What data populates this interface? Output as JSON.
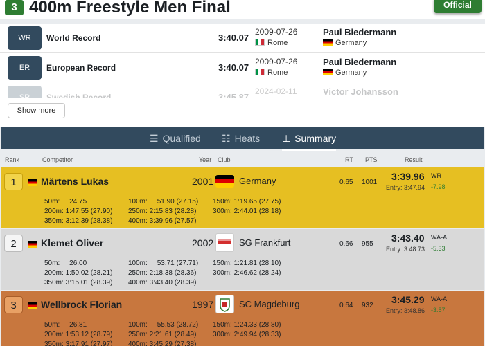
{
  "header": {
    "event_number": "3",
    "title": "400m Freestyle Men Final",
    "status_button": "Official"
  },
  "records": [
    {
      "badge": "WR",
      "name": "World Record",
      "time": "3:40.07",
      "date": "2009-07-26",
      "city": "Rome",
      "holder": "Paul Biedermann",
      "nation": "Germany"
    },
    {
      "badge": "ER",
      "name": "European Record",
      "time": "3:40.07",
      "date": "2009-07-26",
      "city": "Rome",
      "holder": "Paul Biedermann",
      "nation": "Germany"
    },
    {
      "badge": "SR",
      "name": "Swedish Record",
      "time": "3:45.87",
      "date": "2024-02-11",
      "holder": "Victor Johansson"
    }
  ],
  "show_more_label": "Show more",
  "tabs": [
    {
      "label": "Qualified",
      "icon": "list-icon"
    },
    {
      "label": "Heats",
      "icon": "heats-list-icon"
    },
    {
      "label": "Summary",
      "icon": "trophy-icon",
      "active": true
    }
  ],
  "columns": {
    "rank": "Rank",
    "competitor": "Competitor",
    "year": "Year",
    "club": "Club",
    "rt": "RT",
    "pts": "PTS",
    "result": "Result"
  },
  "results": [
    {
      "rank": "1",
      "name": "Märtens Lukas",
      "year": "2001",
      "club": "Germany",
      "rt": "0.65",
      "pts": "1001",
      "result": "3:39.96",
      "entry": "Entry: 3:47.94",
      "record": "WR",
      "diff": "-7.98",
      "splits": [
        {
          "d": "50m:",
          "t": "24.75"
        },
        {
          "d": "100m:",
          "t": "51.90 (27.15)"
        },
        {
          "d": "150m:",
          "t": "1:19.65 (27.75)"
        },
        {
          "d": "200m:",
          "t": "1:47.55 (27.90)"
        },
        {
          "d": "250m:",
          "t": "2:15.83 (28.28)"
        },
        {
          "d": "300m:",
          "t": "2:44.01 (28.18)"
        },
        {
          "d": "350m:",
          "t": "3:12.39 (28.38)"
        },
        {
          "d": "400m:",
          "t": "3:39.96 (27.57)"
        }
      ]
    },
    {
      "rank": "2",
      "name": "Klemet Oliver",
      "year": "2002",
      "club": "SG Frankfurt",
      "rt": "0.66",
      "pts": "955",
      "result": "3:43.40",
      "entry": "Entry: 3:48.73",
      "record": "WA-A",
      "diff": "-5.33",
      "splits": [
        {
          "d": "50m:",
          "t": "26.00"
        },
        {
          "d": "100m:",
          "t": "53.71 (27.71)"
        },
        {
          "d": "150m:",
          "t": "1:21.81 (28.10)"
        },
        {
          "d": "200m:",
          "t": "1:50.02 (28.21)"
        },
        {
          "d": "250m:",
          "t": "2:18.38 (28.36)"
        },
        {
          "d": "300m:",
          "t": "2:46.62 (28.24)"
        },
        {
          "d": "350m:",
          "t": "3:15.01 (28.39)"
        },
        {
          "d": "400m:",
          "t": "3:43.40 (28.39)"
        }
      ]
    },
    {
      "rank": "3",
      "name": "Wellbrock Florian",
      "year": "1997",
      "club": "SC Magdeburg",
      "rt": "0.64",
      "pts": "932",
      "result": "3:45.29",
      "entry": "Entry: 3:48.86",
      "record": "WA-A",
      "diff": "-3.57",
      "splits": [
        {
          "d": "50m:",
          "t": "26.81"
        },
        {
          "d": "100m:",
          "t": "55.53 (28.72)"
        },
        {
          "d": "150m:",
          "t": "1:24.33 (28.80)"
        },
        {
          "d": "200m:",
          "t": "1:53.12 (28.79)"
        },
        {
          "d": "250m:",
          "t": "2:21.61 (28.49)"
        },
        {
          "d": "300m:",
          "t": "2:49.94 (28.33)"
        },
        {
          "d": "350m:",
          "t": "3:17.91 (27.97)"
        },
        {
          "d": "400m:",
          "t": "3:45.29 (27.38)"
        }
      ]
    }
  ],
  "colors": {
    "gold": "#e6bf22",
    "silver": "#d9d9d9",
    "bronze": "#c8773e",
    "nav": "#324a5e",
    "green": "#2e7d32"
  }
}
